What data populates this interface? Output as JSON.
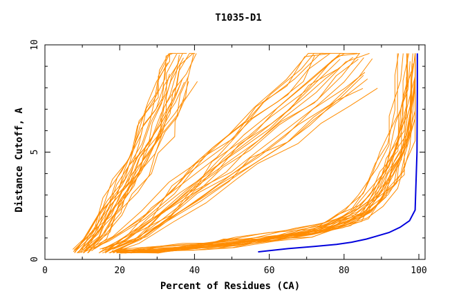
{
  "chart_data": {
    "type": "line",
    "title": "T1035-D1",
    "xlabel": "Percent of Residues (CA)",
    "ylabel": "Distance Cutoff, A",
    "xlim": [
      0,
      100
    ],
    "ylim": [
      0,
      10
    ],
    "x_ticks": [
      0,
      20,
      40,
      60,
      80,
      100
    ],
    "y_ticks": [
      0,
      5,
      10
    ],
    "grid": false,
    "legend": "none",
    "colors": {
      "models": "#ff8c00",
      "highlight": "#0000dd",
      "axis": "#000000"
    },
    "highlight_series": {
      "x": [
        57,
        65,
        72,
        78,
        82,
        86,
        89,
        92,
        95,
        97.5,
        99,
        99.5,
        99.6,
        99.6
      ],
      "y": [
        0.35,
        0.5,
        0.6,
        0.7,
        0.8,
        0.95,
        1.1,
        1.25,
        1.5,
        1.8,
        2.3,
        5.0,
        8.0,
        9.6
      ]
    },
    "model_groups": [
      {
        "count": 22,
        "x": [
          10,
          14,
          18,
          22,
          25,
          28,
          31,
          33,
          35,
          37
        ],
        "y": [
          0.35,
          1.2,
          2.4,
          3.5,
          4.5,
          5.6,
          6.7,
          7.6,
          8.5,
          9.5
        ],
        "spread": 5
      },
      {
        "count": 22,
        "x": [
          15,
          22,
          30,
          38,
          45,
          52,
          60,
          68,
          75,
          80
        ],
        "y": [
          0.35,
          1.0,
          2.0,
          3.2,
          4.2,
          5.2,
          6.3,
          7.4,
          8.5,
          9.5
        ],
        "spread": 9
      },
      {
        "count": 26,
        "x": [
          20,
          30,
          40,
          50,
          60,
          70,
          78,
          84,
          88,
          92,
          94,
          96,
          97,
          98
        ],
        "y": [
          0.35,
          0.45,
          0.6,
          0.8,
          1.0,
          1.3,
          1.7,
          2.2,
          3.0,
          4.0,
          5.0,
          6.5,
          8.0,
          9.5
        ],
        "spread": 4
      }
    ]
  }
}
